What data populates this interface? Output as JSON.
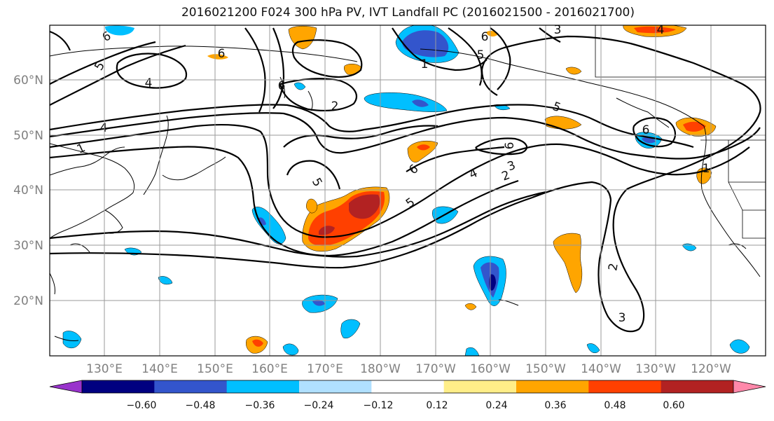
{
  "title": "2016021200 F024 300 hPa PV, IVT Landfall PC (2016021500 - 2016021700)",
  "lat_labels": [
    "60°N",
    "50°N",
    "40°N",
    "30°N",
    "20°N"
  ],
  "lon_labels": [
    "130°E",
    "140°E",
    "150°E",
    "160°E",
    "170°E",
    "180°W",
    "170°W",
    "160°W",
    "150°W",
    "140°W",
    "130°W",
    "120°W"
  ],
  "colorbar": {
    "ticks": [
      "−0.60",
      "−0.48",
      "−0.36",
      "−0.24",
      "−0.12",
      "0.12",
      "0.24",
      "0.36",
      "0.48",
      "0.60"
    ],
    "colors": [
      "#9933cc",
      "#000080",
      "#3355cc",
      "#00bfff",
      "#b0e0ff",
      "#ffffff",
      "#ffee88",
      "#ffa500",
      "#ff4000",
      "#b22222",
      "#ff88aa"
    ]
  },
  "contour_labels": [
    "6",
    "6",
    "6",
    "3",
    "4",
    "5",
    "4",
    "1",
    "1",
    "2",
    "6",
    "5",
    "4",
    "5",
    "6",
    "6",
    "5",
    "4",
    "3",
    "2",
    "5",
    "6",
    "1",
    "2",
    "3"
  ]
}
